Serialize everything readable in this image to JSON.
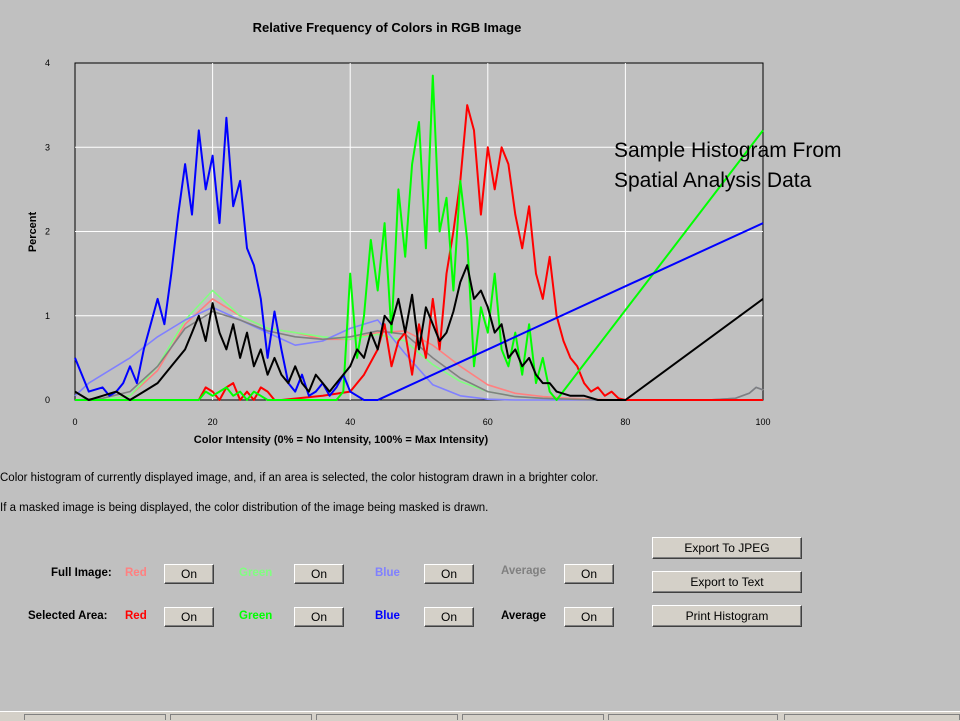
{
  "annotation": [
    "Sample Histogram From",
    "Spatial Analysis Data"
  ],
  "descriptions": [
    "Color histogram of currently displayed image, and, if an area is selected, the color histogram drawn in a brighter color.",
    "If a masked image is being displayed, the color distribution of the image being masked is drawn."
  ],
  "controls": {
    "full_image": {
      "label": "Full Image:",
      "items": [
        {
          "name": "Red",
          "color": "#ff8080",
          "button": "On"
        },
        {
          "name": "Green",
          "color": "#80ff80",
          "button": "On"
        },
        {
          "name": "Blue",
          "color": "#8080ff",
          "button": "On"
        },
        {
          "name": "Average",
          "color": "#808080",
          "button": "On"
        }
      ]
    },
    "selected_area": {
      "label": "Selected Area:",
      "items": [
        {
          "name": "Red",
          "color": "#ff0000",
          "button": "On"
        },
        {
          "name": "Green",
          "color": "#00ff00",
          "button": "On"
        },
        {
          "name": "Blue",
          "color": "#0000ff",
          "button": "On"
        },
        {
          "name": "Average",
          "color": "#000000",
          "button": "On"
        }
      ]
    }
  },
  "actions": {
    "export_jpeg": "Export To JPEG",
    "export_text": "Export to Text",
    "print": "Print Histogram"
  },
  "chart_data": {
    "type": "line",
    "title": "Relative Frequency of Colors in RGB Image",
    "xlabel": "Color Intensity (0% = No Intensity, 100% = Max Intensity)",
    "ylabel": "Percent",
    "xlim": [
      0,
      100
    ],
    "ylim": [
      0,
      4
    ],
    "xticks": [
      0,
      20,
      40,
      60,
      80,
      100
    ],
    "yticks": [
      0,
      1,
      2,
      3,
      4
    ],
    "grid": true,
    "series": [
      {
        "name": "Red",
        "color": "#ff8080",
        "x": [
          0,
          4,
          8,
          12,
          16,
          20,
          24,
          28,
          32,
          36,
          40,
          44,
          48,
          52,
          56,
          60,
          64,
          68,
          72,
          76,
          80,
          84,
          88,
          92,
          96,
          98,
          99,
          100
        ],
        "y": [
          0,
          0,
          0.05,
          0.35,
          0.9,
          1.2,
          1.0,
          0.85,
          0.8,
          0.72,
          0.72,
          0.8,
          0.82,
          0.65,
          0.4,
          0.18,
          0.08,
          0.04,
          0.02,
          0.01,
          0,
          0,
          0,
          0,
          0.02,
          0.08,
          0.15,
          0.12
        ]
      },
      {
        "name": "Green",
        "color": "#80ff80",
        "x": [
          0,
          4,
          8,
          12,
          16,
          20,
          24,
          28,
          32,
          36,
          40,
          44,
          48,
          52,
          56,
          60,
          64,
          68,
          72,
          76,
          80,
          84,
          88,
          92,
          96,
          98,
          99,
          100
        ],
        "y": [
          0,
          0,
          0.05,
          0.4,
          0.95,
          1.3,
          1.0,
          0.85,
          0.8,
          0.75,
          0.72,
          0.78,
          0.7,
          0.42,
          0.22,
          0.1,
          0.04,
          0.02,
          0.01,
          0,
          0,
          0,
          0,
          0,
          0.02,
          0.08,
          0.15,
          0.12
        ]
      },
      {
        "name": "Blue",
        "color": "#8080ff",
        "x": [
          0,
          2,
          4,
          8,
          12,
          16,
          20,
          24,
          28,
          32,
          36,
          40,
          44,
          48,
          52,
          56,
          60,
          64,
          68,
          72,
          76,
          80,
          84,
          88,
          92,
          96,
          98,
          99,
          100
        ],
        "y": [
          0.05,
          0.2,
          0.3,
          0.5,
          0.75,
          0.95,
          1.1,
          0.95,
          0.8,
          0.65,
          0.7,
          0.85,
          0.95,
          0.55,
          0.18,
          0.05,
          0.01,
          0,
          0,
          0,
          0,
          0,
          0,
          0,
          0,
          0.02,
          0.08,
          0.15,
          0.12
        ]
      },
      {
        "name": "Average",
        "color": "#808080",
        "x": [
          0,
          4,
          8,
          12,
          16,
          20,
          24,
          28,
          32,
          36,
          40,
          44,
          48,
          52,
          56,
          60,
          64,
          68,
          72,
          76,
          80,
          84,
          88,
          92,
          96,
          98,
          99,
          100
        ],
        "y": [
          0,
          0.02,
          0.1,
          0.4,
          0.85,
          1.05,
          0.95,
          0.82,
          0.75,
          0.72,
          0.75,
          0.82,
          0.78,
          0.5,
          0.26,
          0.1,
          0.04,
          0.02,
          0.01,
          0,
          0,
          0,
          0,
          0,
          0.02,
          0.08,
          0.15,
          0.12
        ]
      },
      {
        "name": "Red",
        "color": "#ff0000",
        "x": [
          18,
          19,
          20,
          21,
          22,
          23,
          24,
          25,
          26,
          27,
          28,
          29,
          30,
          36,
          40,
          42,
          44,
          45,
          46,
          47,
          48,
          49,
          50,
          51,
          52,
          53,
          54,
          55,
          56,
          57,
          58,
          59,
          60,
          61,
          62,
          63,
          64,
          65,
          66,
          67,
          68,
          69,
          70,
          71,
          72,
          73,
          74,
          75,
          76,
          77,
          78,
          79,
          80,
          99,
          100
        ],
        "y": [
          0,
          0.15,
          0.1,
          0,
          0.15,
          0.2,
          0,
          0.1,
          0,
          0.15,
          0.1,
          0,
          0,
          0.05,
          0.1,
          0.3,
          0.6,
          0.9,
          0.4,
          0.7,
          0.8,
          0.3,
          0.9,
          0.5,
          1.2,
          0.6,
          1.5,
          2.0,
          2.6,
          3.5,
          3.2,
          2.2,
          3.0,
          2.5,
          3.0,
          2.8,
          2.2,
          1.8,
          2.3,
          1.5,
          1.2,
          1.7,
          1.0,
          0.7,
          0.5,
          0.4,
          0.2,
          0.1,
          0.15,
          0.05,
          0.1,
          0.02,
          0,
          0,
          0
        ]
      },
      {
        "name": "Green",
        "color": "#00ff00",
        "x": [
          0,
          12,
          16,
          18,
          19,
          20,
          21,
          22,
          23,
          24,
          25,
          26,
          27,
          28,
          29,
          30,
          38,
          39,
          40,
          41,
          42,
          43,
          44,
          45,
          46,
          47,
          48,
          49,
          50,
          51,
          52,
          53,
          54,
          55,
          56,
          57,
          58,
          59,
          60,
          61,
          62,
          63,
          64,
          65,
          66,
          67,
          68,
          69,
          70,
          100
        ],
        "y": [
          0,
          0,
          0,
          0,
          0.1,
          0.05,
          0.1,
          0.15,
          0.05,
          0.1,
          0,
          0.1,
          0.05,
          0,
          0,
          0,
          0,
          0.1,
          1.5,
          0.5,
          1.0,
          1.9,
          1.3,
          2.1,
          0.8,
          2.5,
          1.7,
          2.8,
          3.3,
          1.8,
          3.85,
          2.0,
          2.4,
          1.3,
          2.6,
          1.9,
          0.4,
          1.1,
          0.8,
          1.5,
          0.6,
          0.4,
          0.8,
          0.3,
          0.9,
          0.2,
          0.5,
          0.1,
          0,
          3.2
        ]
      },
      {
        "name": "Blue",
        "color": "#0000ff",
        "x": [
          0,
          2,
          4,
          5,
          6,
          7,
          8,
          9,
          10,
          11,
          12,
          13,
          14,
          15,
          16,
          17,
          18,
          19,
          20,
          21,
          22,
          23,
          24,
          25,
          26,
          27,
          28,
          29,
          30,
          31,
          32,
          33,
          34,
          35,
          36,
          37,
          38,
          39,
          40,
          41,
          42,
          43,
          44,
          100
        ],
        "y": [
          0.5,
          0.1,
          0.15,
          0.05,
          0.1,
          0.2,
          0.4,
          0.2,
          0.6,
          0.9,
          1.2,
          0.9,
          1.5,
          2.2,
          2.8,
          2.2,
          3.2,
          2.5,
          2.9,
          2.1,
          3.35,
          2.3,
          2.6,
          1.8,
          1.6,
          1.2,
          0.5,
          1.05,
          0.6,
          0.2,
          0.1,
          0.3,
          0.05,
          0.1,
          0.2,
          0.05,
          0.15,
          0.3,
          0.1,
          0.05,
          0,
          0,
          0,
          2.1
        ]
      },
      {
        "name": "Average",
        "color": "#000000",
        "x": [
          0,
          2,
          4,
          6,
          8,
          10,
          12,
          14,
          16,
          17,
          18,
          19,
          20,
          21,
          22,
          23,
          24,
          25,
          26,
          27,
          28,
          29,
          30,
          31,
          32,
          33,
          34,
          35,
          36,
          37,
          38,
          39,
          40,
          41,
          42,
          43,
          44,
          45,
          46,
          47,
          48,
          49,
          50,
          51,
          52,
          53,
          54,
          55,
          56,
          57,
          58,
          59,
          60,
          61,
          62,
          63,
          64,
          65,
          66,
          67,
          68,
          69,
          70,
          72,
          74,
          76,
          78,
          80,
          100
        ],
        "y": [
          0.1,
          0,
          0.05,
          0.1,
          0,
          0.1,
          0.2,
          0.4,
          0.6,
          0.8,
          1.0,
          0.7,
          1.15,
          0.8,
          0.6,
          0.9,
          0.5,
          0.8,
          0.4,
          0.6,
          0.3,
          0.5,
          0.3,
          0.2,
          0.4,
          0.2,
          0.1,
          0.3,
          0.2,
          0.1,
          0.2,
          0.3,
          0.4,
          0.6,
          0.5,
          0.8,
          0.6,
          1.0,
          0.9,
          1.2,
          0.8,
          1.25,
          0.6,
          1.1,
          0.9,
          0.7,
          0.8,
          1.05,
          1.4,
          1.6,
          1.2,
          1.3,
          1.1,
          0.8,
          0.9,
          0.5,
          0.6,
          0.4,
          0.5,
          0.3,
          0.2,
          0.2,
          0.1,
          0.05,
          0.05,
          0,
          0,
          0,
          1.2
        ]
      }
    ]
  }
}
